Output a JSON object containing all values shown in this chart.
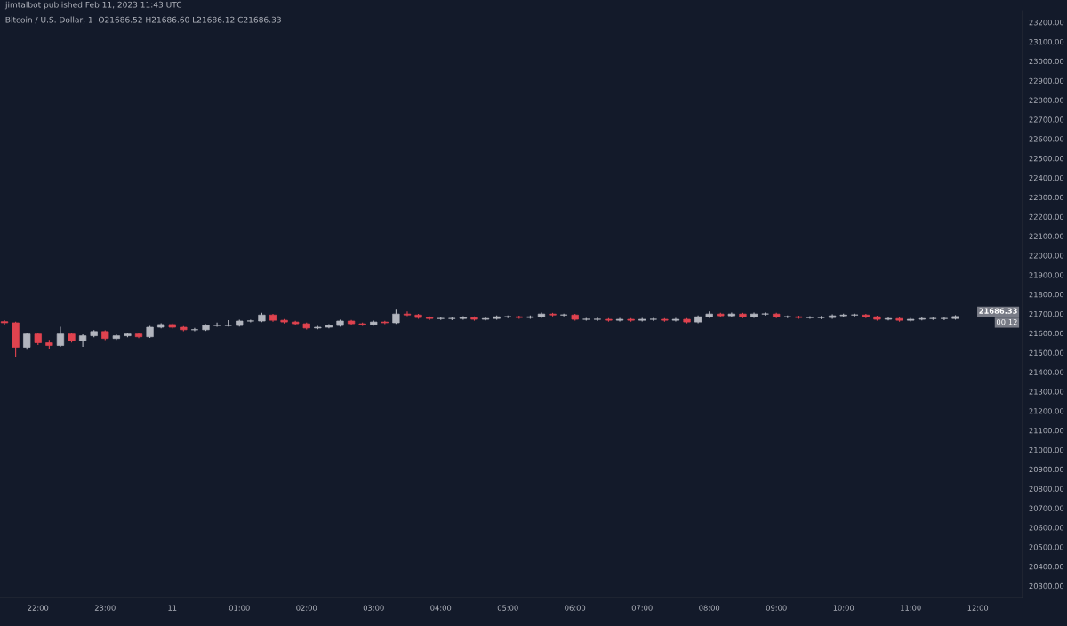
{
  "chart_data": {
    "type": "candlestick",
    "title": "jimtalbot published Feb 11, 2023 11:43 UTC",
    "subtitle": "Bitcoin / U.S. Dollar, 1  O21686.52 H21686.60 L21686.12 C21686.33",
    "x": [
      "2023-02-10T21:30",
      "2023-02-10T21:40",
      "2023-02-10T21:50",
      "2023-02-10T22:00",
      "2023-02-10T22:10",
      "2023-02-10T22:20",
      "2023-02-10T22:30",
      "2023-02-10T22:40",
      "2023-02-10T22:50",
      "2023-02-10T23:00",
      "2023-02-10T23:10",
      "2023-02-10T23:20",
      "2023-02-10T23:30",
      "2023-02-10T23:40",
      "2023-02-10T23:50",
      "2023-02-11T00:00",
      "2023-02-11T00:10",
      "2023-02-11T00:20",
      "2023-02-11T00:30",
      "2023-02-11T00:40",
      "2023-02-11T00:50",
      "2023-02-11T01:00",
      "2023-02-11T01:10",
      "2023-02-11T01:20",
      "2023-02-11T01:30",
      "2023-02-11T01:40",
      "2023-02-11T01:50",
      "2023-02-11T02:00",
      "2023-02-11T02:10",
      "2023-02-11T02:20",
      "2023-02-11T02:30",
      "2023-02-11T02:40",
      "2023-02-11T02:50",
      "2023-02-11T03:00",
      "2023-02-11T03:10",
      "2023-02-11T03:20",
      "2023-02-11T03:30",
      "2023-02-11T03:40",
      "2023-02-11T03:50",
      "2023-02-11T04:00",
      "2023-02-11T04:10",
      "2023-02-11T04:20",
      "2023-02-11T04:30",
      "2023-02-11T04:40",
      "2023-02-11T04:50",
      "2023-02-11T05:00",
      "2023-02-11T05:10",
      "2023-02-11T05:20",
      "2023-02-11T05:30",
      "2023-02-11T05:40",
      "2023-02-11T05:50",
      "2023-02-11T06:00",
      "2023-02-11T06:10",
      "2023-02-11T06:20",
      "2023-02-11T06:30",
      "2023-02-11T06:40",
      "2023-02-11T06:50",
      "2023-02-11T07:00",
      "2023-02-11T07:10",
      "2023-02-11T07:20",
      "2023-02-11T07:30",
      "2023-02-11T07:40",
      "2023-02-11T07:50",
      "2023-02-11T08:00",
      "2023-02-11T08:10",
      "2023-02-11T08:20",
      "2023-02-11T08:30",
      "2023-02-11T08:40",
      "2023-02-11T08:50",
      "2023-02-11T09:00",
      "2023-02-11T09:10",
      "2023-02-11T09:20",
      "2023-02-11T09:30",
      "2023-02-11T09:40",
      "2023-02-11T09:50",
      "2023-02-11T10:00",
      "2023-02-11T10:10",
      "2023-02-11T10:20",
      "2023-02-11T10:30",
      "2023-02-11T10:40",
      "2023-02-11T10:50",
      "2023-02-11T11:00",
      "2023-02-11T11:10",
      "2023-02-11T11:20",
      "2023-02-11T11:30",
      "2023-02-11T11:40"
    ],
    "ohlc": [
      [
        21660,
        21668,
        21645,
        21654
      ],
      [
        21654,
        21660,
        21475,
        21528
      ],
      [
        21528,
        21604,
        21515,
        21596
      ],
      [
        21596,
        21602,
        21540,
        21551
      ],
      [
        21551,
        21566,
        21520,
        21537
      ],
      [
        21537,
        21633,
        21530,
        21596
      ],
      [
        21596,
        21602,
        21552,
        21560
      ],
      [
        21560,
        21594,
        21530,
        21587
      ],
      [
        21587,
        21616,
        21580,
        21609
      ],
      [
        21609,
        21615,
        21565,
        21573
      ],
      [
        21573,
        21594,
        21566,
        21587
      ],
      [
        21587,
        21603,
        21580,
        21596
      ],
      [
        21596,
        21602,
        21575,
        21582
      ],
      [
        21582,
        21638,
        21576,
        21631
      ],
      [
        21631,
        21652,
        21625,
        21645
      ],
      [
        21645,
        21651,
        21624,
        21631
      ],
      [
        21631,
        21637,
        21611,
        21618
      ],
      [
        21618,
        21628,
        21610,
        21618
      ],
      [
        21618,
        21647,
        21612,
        21640
      ],
      [
        21640,
        21655,
        21633,
        21640
      ],
      [
        21640,
        21668,
        21634,
        21640
      ],
      [
        21640,
        21670,
        21634,
        21663
      ],
      [
        21663,
        21670,
        21656,
        21663
      ],
      [
        21663,
        21705,
        21657,
        21694
      ],
      [
        21694,
        21700,
        21660,
        21667
      ],
      [
        21667,
        21673,
        21651,
        21658
      ],
      [
        21658,
        21664,
        21642,
        21649
      ],
      [
        21649,
        21655,
        21620,
        21627
      ],
      [
        21627,
        21638,
        21621,
        21631
      ],
      [
        21631,
        21647,
        21625,
        21640
      ],
      [
        21640,
        21670,
        21634,
        21663
      ],
      [
        21663,
        21669,
        21642,
        21649
      ],
      [
        21649,
        21655,
        21638,
        21645
      ],
      [
        21645,
        21665,
        21639,
        21658
      ],
      [
        21658,
        21664,
        21647,
        21654
      ],
      [
        21654,
        21721,
        21648,
        21699
      ],
      [
        21699,
        21712,
        21688,
        21694
      ],
      [
        21694,
        21700,
        21674,
        21681
      ],
      [
        21681,
        21687,
        21669,
        21676
      ],
      [
        21676,
        21683,
        21669,
        21676
      ],
      [
        21676,
        21684,
        21668,
        21676
      ],
      [
        21676,
        21688,
        21670,
        21681
      ],
      [
        21681,
        21687,
        21665,
        21672
      ],
      [
        21672,
        21683,
        21666,
        21676
      ],
      [
        21676,
        21692,
        21670,
        21685
      ],
      [
        21685,
        21692,
        21678,
        21685
      ],
      [
        21685,
        21691,
        21674,
        21681
      ],
      [
        21681,
        21692,
        21675,
        21685
      ],
      [
        21685,
        21706,
        21679,
        21699
      ],
      [
        21699,
        21705,
        21687,
        21694
      ],
      [
        21694,
        21701,
        21687,
        21694
      ],
      [
        21694,
        21700,
        21665,
        21672
      ],
      [
        21672,
        21679,
        21665,
        21672
      ],
      [
        21672,
        21680,
        21664,
        21672
      ],
      [
        21672,
        21678,
        21660,
        21667
      ],
      [
        21667,
        21679,
        21661,
        21672
      ],
      [
        21672,
        21678,
        21660,
        21667
      ],
      [
        21667,
        21679,
        21661,
        21672
      ],
      [
        21672,
        21679,
        21664,
        21672
      ],
      [
        21672,
        21678,
        21660,
        21667
      ],
      [
        21667,
        21679,
        21661,
        21672
      ],
      [
        21672,
        21678,
        21651,
        21658
      ],
      [
        21658,
        21692,
        21652,
        21685
      ],
      [
        21685,
        21712,
        21679,
        21699
      ],
      [
        21699,
        21705,
        21683,
        21690
      ],
      [
        21690,
        21706,
        21684,
        21699
      ],
      [
        21699,
        21705,
        21678,
        21685
      ],
      [
        21685,
        21706,
        21679,
        21699
      ],
      [
        21699,
        21706,
        21692,
        21699
      ],
      [
        21699,
        21705,
        21678,
        21685
      ],
      [
        21685,
        21692,
        21678,
        21685
      ],
      [
        21685,
        21691,
        21674,
        21681
      ],
      [
        21681,
        21688,
        21674,
        21681
      ],
      [
        21681,
        21689,
        21673,
        21681
      ],
      [
        21681,
        21697,
        21675,
        21690
      ],
      [
        21690,
        21701,
        21684,
        21694
      ],
      [
        21694,
        21701,
        21687,
        21694
      ],
      [
        21694,
        21700,
        21678,
        21685
      ],
      [
        21685,
        21691,
        21665,
        21672
      ],
      [
        21672,
        21683,
        21666,
        21676
      ],
      [
        21676,
        21682,
        21660,
        21667
      ],
      [
        21667,
        21679,
        21661,
        21672
      ],
      [
        21672,
        21683,
        21666,
        21676
      ],
      [
        21676,
        21683,
        21669,
        21676
      ],
      [
        21676,
        21684,
        21668,
        21676
      ],
      [
        21676,
        21693,
        21670,
        21686.33
      ]
    ],
    "xlim": [
      "2023-02-10T21:26",
      "2023-02-11T12:40"
    ],
    "xticks": [
      {
        "value": "2023-02-10T22:00",
        "label": "22:00"
      },
      {
        "value": "2023-02-10T23:00",
        "label": "23:00"
      },
      {
        "value": "2023-02-11T00:00",
        "label": "11"
      },
      {
        "value": "2023-02-11T01:00",
        "label": "01:00"
      },
      {
        "value": "2023-02-11T02:00",
        "label": "02:00"
      },
      {
        "value": "2023-02-11T03:00",
        "label": "03:00"
      },
      {
        "value": "2023-02-11T04:00",
        "label": "04:00"
      },
      {
        "value": "2023-02-11T05:00",
        "label": "05:00"
      },
      {
        "value": "2023-02-11T06:00",
        "label": "06:00"
      },
      {
        "value": "2023-02-11T07:00",
        "label": "07:00"
      },
      {
        "value": "2023-02-11T08:00",
        "label": "08:00"
      },
      {
        "value": "2023-02-11T09:00",
        "label": "09:00"
      },
      {
        "value": "2023-02-11T10:00",
        "label": "10:00"
      },
      {
        "value": "2023-02-11T11:00",
        "label": "11:00"
      },
      {
        "value": "2023-02-11T12:00",
        "label": "12:00"
      }
    ],
    "ylim": [
      20240,
      23260
    ],
    "yticks": [
      {
        "value": 20300,
        "label": "20300.00"
      },
      {
        "value": 20400,
        "label": "20400.00"
      },
      {
        "value": 20500,
        "label": "20500.00"
      },
      {
        "value": 20600,
        "label": "20600.00"
      },
      {
        "value": 20700,
        "label": "20700.00"
      },
      {
        "value": 20800,
        "label": "20800.00"
      },
      {
        "value": 20900,
        "label": "20900.00"
      },
      {
        "value": 21000,
        "label": "21000.00"
      },
      {
        "value": 21100,
        "label": "21100.00"
      },
      {
        "value": 21200,
        "label": "21200.00"
      },
      {
        "value": 21300,
        "label": "21300.00"
      },
      {
        "value": 21400,
        "label": "21400.00"
      },
      {
        "value": 21500,
        "label": "21500.00"
      },
      {
        "value": 21600,
        "label": "21600.00"
      },
      {
        "value": 21700,
        "label": "21700.00"
      },
      {
        "value": 21800,
        "label": "21800.00"
      },
      {
        "value": 21900,
        "label": "21900.00"
      },
      {
        "value": 22000,
        "label": "22000.00"
      },
      {
        "value": 22100,
        "label": "22100.00"
      },
      {
        "value": 22200,
        "label": "22200.00"
      },
      {
        "value": 22300,
        "label": "22300.00"
      },
      {
        "value": 22400,
        "label": "22400.00"
      },
      {
        "value": 22500,
        "label": "22500.00"
      },
      {
        "value": 22600,
        "label": "22600.00"
      },
      {
        "value": 22700,
        "label": "22700.00"
      },
      {
        "value": 22800,
        "label": "22800.00"
      },
      {
        "value": 22900,
        "label": "22900.00"
      },
      {
        "value": 23000,
        "label": "23000.00"
      },
      {
        "value": 23100,
        "label": "23100.00"
      },
      {
        "value": 23200,
        "label": "23200.00"
      }
    ],
    "colors": [
      "#e0434f",
      "#e0434f",
      "#b2b5be",
      "#e0434f",
      "#e0434f",
      "#b2b5be",
      "#e0434f",
      "#b2b5be",
      "#b2b5be",
      "#e0434f",
      "#b2b5be",
      "#b2b5be",
      "#e0434f",
      "#b2b5be",
      "#b2b5be",
      "#e0434f",
      "#e0434f",
      "#b2b5be",
      "#b2b5be",
      "#b2b5be",
      "#b2b5be",
      "#b2b5be",
      "#b2b5be",
      "#b2b5be",
      "#e0434f",
      "#e0434f",
      "#e0434f",
      "#e0434f",
      "#b2b5be",
      "#b2b5be",
      "#b2b5be",
      "#e0434f",
      "#e0434f",
      "#b2b5be",
      "#e0434f",
      "#b2b5be",
      "#e0434f",
      "#e0434f",
      "#e0434f",
      "#b2b5be",
      "#b2b5be",
      "#b2b5be",
      "#e0434f",
      "#b2b5be",
      "#b2b5be",
      "#b2b5be",
      "#e0434f",
      "#b2b5be",
      "#b2b5be",
      "#e0434f",
      "#b2b5be",
      "#e0434f",
      "#b2b5be",
      "#b2b5be",
      "#e0434f",
      "#b2b5be",
      "#e0434f",
      "#b2b5be",
      "#b2b5be",
      "#e0434f",
      "#b2b5be",
      "#e0434f",
      "#b2b5be",
      "#b2b5be",
      "#e0434f",
      "#b2b5be",
      "#e0434f",
      "#b2b5be",
      "#b2b5be",
      "#e0434f",
      "#b2b5be",
      "#e0434f",
      "#b2b5be",
      "#b2b5be",
      "#b2b5be",
      "#b2b5be",
      "#b2b5be",
      "#e0434f",
      "#e0434f",
      "#b2b5be",
      "#e0434f",
      "#b2b5be",
      "#b2b5be",
      "#b2b5be",
      "#b2b5be",
      "#b2b5be"
    ],
    "annotations": [
      "21686.33",
      "00:12"
    ],
    "grid": false
  }
}
